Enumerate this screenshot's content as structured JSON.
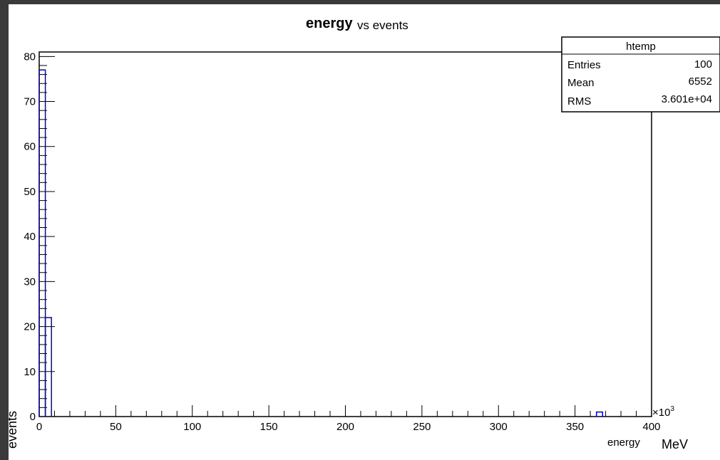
{
  "chart_data": {
    "type": "bar",
    "title_main": "energy",
    "title_sub": "vs events",
    "xlabel": "energy",
    "xunit": "MeV",
    "ylabel": "events",
    "x_exponent_label": "×10",
    "x_exponent_power": "3",
    "xlim": [
      0,
      400
    ],
    "ylim": [
      0,
      81
    ],
    "x_ticks": [
      0,
      50,
      100,
      150,
      200,
      250,
      300,
      350,
      400
    ],
    "y_ticks": [
      0,
      10,
      20,
      30,
      40,
      50,
      60,
      70,
      80
    ],
    "bins": [
      {
        "x0": 0,
        "x1": 4,
        "value": 77
      },
      {
        "x0": 4,
        "x1": 8,
        "value": 22
      },
      {
        "x0": 364,
        "x1": 368,
        "value": 1
      }
    ],
    "stats": {
      "name": "htemp",
      "rows": [
        {
          "label": "Entries",
          "value": "100"
        },
        {
          "label": "Mean",
          "value": "6552"
        },
        {
          "label": "RMS",
          "value": "3.601e+04"
        }
      ]
    },
    "colors": {
      "histogram": "#0000cc",
      "axis": "#000000"
    }
  }
}
